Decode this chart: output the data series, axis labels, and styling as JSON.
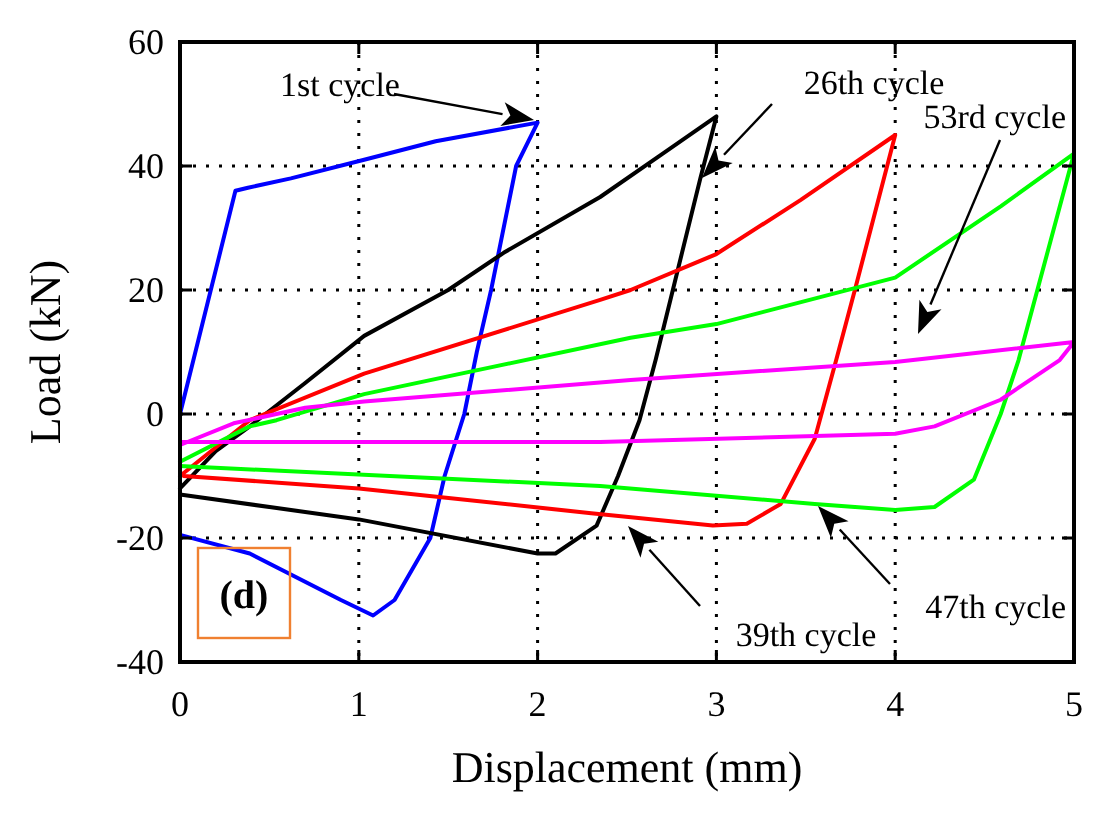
{
  "chart_data": {
    "type": "line",
    "xlabel": "Displacement (mm)",
    "ylabel": "Load (kN)",
    "xlim": [
      0,
      5
    ],
    "ylim": [
      -40,
      60
    ],
    "xticks": [
      0,
      1,
      2,
      3,
      4,
      5
    ],
    "yticks": [
      -40,
      -20,
      0,
      20,
      40,
      60
    ],
    "grid": true,
    "series": [
      {
        "color": "#0000ff",
        "x": [
          0,
          0.31,
          0.38,
          0.62,
          1.03,
          1.43,
          2,
          1.88,
          1.74,
          1.66,
          1.59,
          1.48,
          1.4,
          1.2,
          1.08,
          0.9,
          0.39,
          0
        ],
        "values": [
          0,
          36,
          36.5,
          38,
          41,
          44,
          47,
          40,
          20,
          10,
          0,
          -10,
          -20,
          -30,
          -32.5,
          -30,
          -22.5,
          -19.5
        ]
      },
      {
        "color": "#000000",
        "x": [
          0,
          0.2,
          0.39,
          0.7,
          1.03,
          1.5,
          1.81,
          2.35,
          2.7,
          3,
          2.91,
          2.66,
          2.57,
          2.45,
          2.33,
          2.1,
          2,
          1,
          0
        ],
        "values": [
          -12,
          -6,
          -2,
          5,
          12.6,
          20,
          26,
          35,
          42,
          48,
          38,
          8.7,
          -1,
          -10,
          -18,
          -22.5,
          -22.5,
          -17,
          -13
        ]
      },
      {
        "color": "#ff0000",
        "x": [
          0,
          0.39,
          1.03,
          2.35,
          2.52,
          3,
          3.47,
          4,
          3.78,
          3.67,
          3.55,
          3.36,
          3.17,
          2.98,
          2.3,
          1,
          0.02
        ],
        "values": [
          -10,
          -1,
          6.5,
          18.4,
          20,
          25.8,
          34.5,
          45,
          20.6,
          8.7,
          -4,
          -14.5,
          -17.7,
          -18,
          -16,
          -12,
          -10
        ]
      },
      {
        "color": "#00ff00",
        "x": [
          0,
          0.39,
          0.54,
          1.03,
          2.52,
          3,
          4,
          4.59,
          5,
          4.69,
          4.59,
          4.44,
          4.22,
          4,
          3.55,
          2.35,
          0
        ],
        "values": [
          -7.7,
          -2,
          -1,
          3.2,
          12.3,
          14.5,
          22,
          33.5,
          42,
          8.7,
          0,
          -10.6,
          -15,
          -15.5,
          -14.5,
          -11.6,
          -8.4
        ]
      },
      {
        "color": "#ff00ff",
        "x": [
          0,
          0.3,
          0.7,
          1.03,
          2.52,
          4,
          5,
          4.92,
          4.59,
          4.22,
          4,
          2.35,
          0
        ],
        "values": [
          -5,
          -1.5,
          1,
          2,
          5.5,
          8.4,
          11.6,
          8.7,
          2.3,
          -2,
          -3.2,
          -4.5,
          -4.5
        ]
      }
    ],
    "annotations": [
      "1st cycle",
      "26th cycle",
      "53rd cycle",
      "39th cycle",
      "47th cycle",
      "(d)"
    ]
  }
}
